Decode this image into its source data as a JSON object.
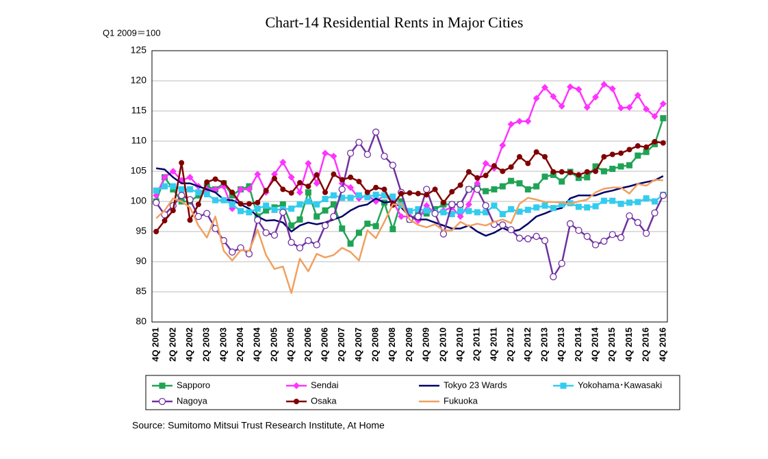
{
  "chart_data": {
    "type": "line",
    "title": "Chart-14 Residential Rents in Major Cities",
    "y_axis_label": "Q1 2009＝100",
    "source": "Source: Sumitomo Mitsui Trust Research Institute, At Home",
    "categories": [
      "4Q 2001",
      null,
      "2Q 2002",
      null,
      "4Q 2002",
      null,
      "2Q 2003",
      null,
      "4Q 2003",
      null,
      "2Q 2004",
      null,
      "4Q 2004",
      null,
      "2Q 2005",
      null,
      "4Q 2005",
      null,
      "2Q 2006",
      null,
      "4Q 2006",
      null,
      "2Q 2007",
      null,
      "4Q 2007",
      null,
      "2Q 2008",
      null,
      "4Q 2008",
      null,
      "2Q 2009",
      null,
      "4Q 2009",
      null,
      "2Q 2010",
      null,
      "4Q 2010",
      null,
      "2Q 2011",
      null,
      "4Q 2011",
      null,
      "2Q 2012",
      null,
      "4Q 2012",
      null,
      "2Q 2013",
      null,
      "4Q 2013",
      null,
      "2Q 2014",
      null,
      "4Q 2014",
      null,
      "2Q 2015",
      null,
      "4Q 2015",
      null,
      "2Q 2016",
      null,
      "4Q 2016"
    ],
    "ylim": [
      80,
      125
    ],
    "yticks": [
      80,
      85,
      90,
      95,
      100,
      105,
      110,
      115,
      120,
      125
    ],
    "grid": true,
    "legend": "bottom",
    "series": [
      {
        "name": "Sapporo",
        "color": "#1fa355",
        "marker": "square",
        "values": [
          100,
          104,
          102,
          100,
          100,
          101,
          102.5,
          102,
          103,
          101,
          102,
          102.5,
          97.5,
          98.5,
          99,
          99.5,
          96,
          97,
          101.5,
          97.5,
          98.5,
          99.5,
          95.5,
          93,
          94.8,
          96.3,
          95.9,
          99.8,
          95.4,
          100,
          97,
          98,
          98,
          98.7,
          99.5,
          99.5,
          99.5,
          102,
          102.3,
          101.7,
          102,
          102.5,
          103.4,
          103,
          102,
          102.5,
          104.1,
          104.4,
          103.3,
          104.9,
          103.9,
          104,
          105.8,
          105,
          105.4,
          105.8,
          106,
          107.6,
          108.2,
          109.5,
          113.8
        ]
      },
      {
        "name": "Sendai",
        "color": "#ff33ff",
        "marker": "diamond",
        "values": [
          101,
          104,
          105,
          103.5,
          104,
          102.5,
          102,
          102,
          102.5,
          98.8,
          102,
          102,
          104.5,
          101.5,
          104.5,
          106.5,
          104,
          101.5,
          106.3,
          103,
          108,
          107.5,
          103,
          102.3,
          100.5,
          101,
          100,
          101,
          100,
          97.5,
          97.5,
          96.8,
          99.3,
          98,
          98.5,
          99,
          97.5,
          99.5,
          103,
          106.3,
          105.5,
          109.3,
          112.8,
          113.3,
          113.3,
          117.1,
          118.9,
          117.4,
          115.8,
          119,
          118.6,
          115.6,
          117.3,
          119.4,
          118.7,
          115.5,
          115.6,
          117.6,
          115.3,
          114.1,
          116.2
        ]
      },
      {
        "name": "Tokyo 23 Wards",
        "color": "#000066",
        "marker": "none",
        "values": [
          105.5,
          105.3,
          104,
          103,
          103,
          102.5,
          102,
          101.5,
          100.3,
          100.2,
          99.5,
          98.8,
          97.5,
          96.8,
          96.9,
          96.5,
          95,
          96,
          96.5,
          96.2,
          96.5,
          97,
          97.5,
          98.5,
          99.2,
          99.5,
          100.5,
          99.8,
          100,
          99,
          97.5,
          97,
          97,
          96.5,
          96,
          95.5,
          95.5,
          96,
          95,
          94.3,
          94.8,
          95.6,
          95,
          95.3,
          96.3,
          97.5,
          98,
          98.6,
          98.9,
          100.5,
          101,
          101,
          101,
          101.5,
          101.8,
          102.2,
          102.5,
          102.9,
          103.2,
          103.5,
          104.2
        ]
      },
      {
        "name": "Yokohama･Kawasaki",
        "color": "#33ccee",
        "marker": "square",
        "values": [
          101.8,
          102.5,
          102.5,
          102,
          102,
          101.5,
          101.2,
          100.2,
          100.2,
          99.5,
          98.4,
          98.2,
          98.8,
          99.3,
          98.6,
          98.7,
          98.8,
          99.5,
          100,
          99.5,
          100.4,
          101,
          100.6,
          100.6,
          101,
          100.7,
          101.1,
          101,
          100.8,
          99.4,
          98.4,
          98.7,
          98.5,
          98.2,
          98.2,
          97.9,
          98.4,
          98.4,
          98.2,
          98.2,
          99.3,
          97.9,
          98.7,
          98.3,
          98.6,
          99,
          99.3,
          98.9,
          99.5,
          99.7,
          99.1,
          99,
          99.2,
          100.1,
          100.1,
          99.6,
          99.8,
          99.9,
          100.5,
          100,
          101.1
        ]
      },
      {
        "name": "Nagoya",
        "color": "#7030a0",
        "marker": "circle-open",
        "values": [
          99.8,
          97.8,
          99.3,
          101,
          100.3,
          97.5,
          98,
          95.5,
          93.5,
          91.6,
          92.3,
          91.3,
          96.9,
          94.8,
          94.4,
          98.2,
          93.2,
          92.3,
          93.5,
          92.8,
          96,
          97.5,
          102,
          108,
          109.8,
          107.8,
          111.5,
          107.5,
          106,
          101.5,
          97,
          97.5,
          102,
          98,
          94.6,
          99.5,
          99.5,
          102,
          102,
          99.3,
          96.2,
          96.1,
          95.3,
          93.9,
          93.8,
          94.2,
          93.5,
          87.5,
          89.7,
          96.3,
          95.2,
          94.2,
          92.8,
          93.4,
          94.5,
          94,
          97.6,
          96.5,
          94.7,
          98.1,
          101
        ]
      },
      {
        "name": "Osaka",
        "color": "#800000",
        "marker": "circle",
        "values": [
          95,
          96.8,
          98.5,
          106.4,
          96.9,
          99.5,
          103.2,
          103.7,
          103.1,
          101.5,
          99.6,
          99.6,
          99.8,
          101.8,
          103.8,
          102,
          101.4,
          103.1,
          102.5,
          104.4,
          101.5,
          104.5,
          103.6,
          104,
          103.3,
          101.5,
          102.3,
          102,
          99.4,
          101.3,
          101.4,
          101.3,
          101.1,
          102,
          99.8,
          101.6,
          102.7,
          104.9,
          103.9,
          104.3,
          105.9,
          105,
          105.7,
          107.4,
          106.3,
          108.2,
          107.4,
          104.9,
          104.9,
          104.8,
          104.4,
          104.9,
          105,
          107.4,
          107.8,
          108,
          108.6,
          109.2,
          109,
          109.9,
          109.7
        ]
      },
      {
        "name": "Fukuoka",
        "color": "#f0a060",
        "marker": "none",
        "values": [
          97.2,
          98.5,
          100.5,
          100,
          99,
          96,
          94,
          97.5,
          91.8,
          90.2,
          91.9,
          91.8,
          95.3,
          91.1,
          88.8,
          89.2,
          84.8,
          90.5,
          88.4,
          91.3,
          90.7,
          91.1,
          92.3,
          91.6,
          90.2,
          95.2,
          93.9,
          96.6,
          99.5,
          99.6,
          97,
          96.1,
          95.7,
          96.2,
          95.2,
          95.2,
          96.6,
          95.9,
          96.3,
          96,
          96.6,
          97,
          96.4,
          99.6,
          100.6,
          100.3,
          99.9,
          99.9,
          99.8,
          99.6,
          100,
          100.3,
          101.5,
          102.1,
          102.3,
          102.3,
          101.3,
          102.9,
          102.6,
          103.6,
          103.5
        ]
      }
    ]
  }
}
